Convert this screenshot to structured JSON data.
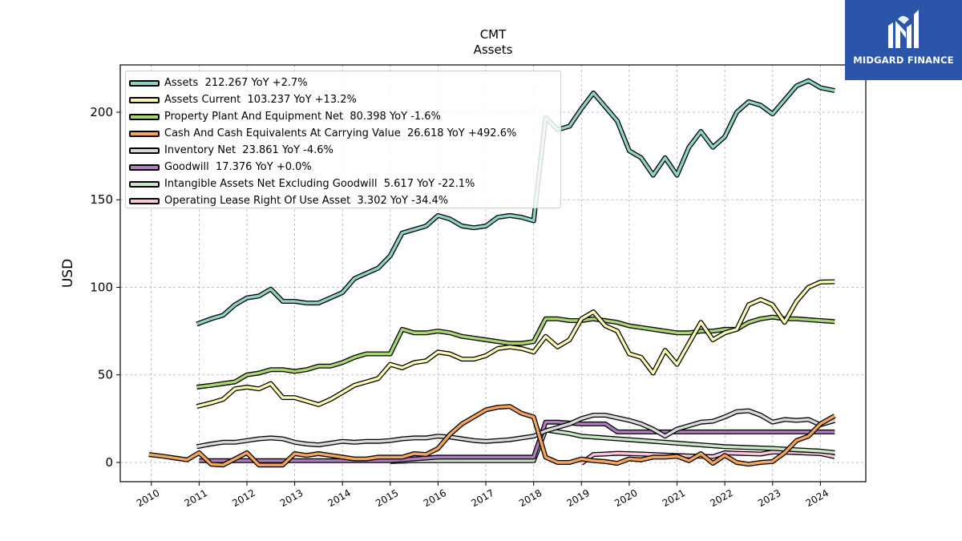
{
  "chart_data": {
    "type": "line",
    "title": "CMT",
    "subtitle": "Assets",
    "xlabel": "",
    "ylabel": "USD",
    "ylim": [
      -11,
      227
    ],
    "xlim": [
      2009.35,
      2024.95
    ],
    "grid": true,
    "legend_position": "top-left",
    "x_ticks": [
      "2010",
      "2011",
      "2012",
      "2013",
      "2014",
      "2015",
      "2016",
      "2017",
      "2018",
      "2019",
      "2020",
      "2021",
      "2022",
      "2023",
      "2024"
    ],
    "y_ticks": [
      0,
      50,
      100,
      150,
      200
    ],
    "series": [
      {
        "name": "Operating Lease Right Of Use Asset  3.302 YoY -34.4%",
        "color": "#fcc5dd",
        "x": [
          2019.0,
          2019.25,
          2019.5,
          2019.75,
          2020.0,
          2020.25,
          2020.5,
          2020.75,
          2021.0,
          2021.25,
          2021.5,
          2021.75,
          2022.0,
          2022.25,
          2022.5,
          2022.75,
          2023.0,
          2023.25,
          2023.5,
          2023.75,
          2024.0,
          2024.3
        ],
        "y": [
          -0.5,
          4.5,
          4.8,
          5.2,
          5.0,
          4.8,
          4.5,
          4.2,
          3.9,
          3.7,
          3.5,
          3.3,
          5.5,
          5.2,
          5.0,
          4.8,
          6.0,
          5.8,
          5.6,
          5.3,
          5.0,
          3.3
        ]
      },
      {
        "name": "Intangible Assets Net Excluding Goodwill  5.617 YoY -22.1%",
        "color": "#c7e8c2",
        "x": [
          2015.0,
          2015.5,
          2016.0,
          2016.5,
          2017.0,
          2017.5,
          2018.0,
          2018.25,
          2018.5,
          2018.75,
          2019.0,
          2019.5,
          2020.0,
          2020.5,
          2021.0,
          2021.5,
          2022.0,
          2022.5,
          2023.0,
          2023.5,
          2024.0,
          2024.3
        ],
        "y": [
          0.5,
          1.0,
          1.0,
          1.0,
          1.0,
          1.0,
          1.0,
          18.5,
          17.5,
          16.5,
          15.0,
          14.0,
          13.0,
          12.0,
          11.0,
          10.0,
          9.0,
          8.5,
          8.0,
          7.2,
          6.5,
          5.6
        ]
      },
      {
        "name": "Goodwill  17.376 YoY +0.0%",
        "color": "#b07bbf",
        "x": [
          2011.0,
          2012.0,
          2013.0,
          2014.0,
          2015.0,
          2016.0,
          2017.0,
          2018.0,
          2018.25,
          2018.5,
          2019.0,
          2019.5,
          2019.75,
          2020.0,
          2021.0,
          2022.0,
          2023.0,
          2024.3
        ],
        "y": [
          1.0,
          1.0,
          1.0,
          1.0,
          1.0,
          3.0,
          3.0,
          3.0,
          23.0,
          23.0,
          22.0,
          22.0,
          17.4,
          17.4,
          17.4,
          17.4,
          17.4,
          17.4
        ]
      },
      {
        "name": "Inventory Net  23.861 YoY -4.6%",
        "color": "#d9d9d9",
        "x": [
          2010.95,
          2011.25,
          2011.5,
          2011.75,
          2012.0,
          2012.25,
          2012.5,
          2012.75,
          2013.0,
          2013.25,
          2013.5,
          2013.75,
          2014.0,
          2014.25,
          2014.5,
          2014.75,
          2015.0,
          2015.25,
          2015.5,
          2015.75,
          2016.0,
          2016.25,
          2016.5,
          2016.75,
          2017.0,
          2017.25,
          2017.5,
          2017.75,
          2018.0,
          2018.25,
          2018.5,
          2018.75,
          2019.0,
          2019.25,
          2019.5,
          2019.75,
          2020.0,
          2020.25,
          2020.5,
          2020.75,
          2021.0,
          2021.25,
          2021.5,
          2021.75,
          2022.0,
          2022.25,
          2022.5,
          2022.75,
          2023.0,
          2023.25,
          2023.5,
          2023.75,
          2024.0,
          2024.3
        ],
        "y": [
          9,
          10.5,
          11.5,
          11.5,
          12.5,
          13.5,
          14,
          13.5,
          11.5,
          10.5,
          10,
          11,
          12,
          11.5,
          12,
          12,
          12.5,
          13.5,
          14,
          14,
          15,
          14.5,
          13.5,
          12.5,
          12,
          12.5,
          13,
          14,
          15,
          18,
          20,
          22,
          25,
          27,
          27,
          25.5,
          24,
          22,
          19,
          15,
          19,
          21,
          23,
          23.5,
          26,
          29,
          29.5,
          27,
          23,
          24.5,
          24,
          24.5,
          21.5,
          23.9
        ]
      },
      {
        "name": "Cash And Cash Equivalents At Carrying Value  26.618 YoY +492.6%",
        "color": "#f5a55a",
        "x": [
          2009.95,
          2010.25,
          2010.5,
          2010.75,
          2011.0,
          2011.25,
          2011.5,
          2011.75,
          2012.0,
          2012.25,
          2012.5,
          2012.75,
          2013.0,
          2013.25,
          2013.5,
          2013.75,
          2014.0,
          2014.25,
          2014.5,
          2014.75,
          2015.0,
          2015.25,
          2015.5,
          2015.75,
          2016.0,
          2016.25,
          2016.5,
          2016.75,
          2017.0,
          2017.25,
          2017.5,
          2017.75,
          2018.0,
          2018.25,
          2018.5,
          2018.75,
          2019.0,
          2019.25,
          2019.5,
          2019.75,
          2020.0,
          2020.25,
          2020.5,
          2020.75,
          2021.0,
          2021.25,
          2021.5,
          2021.75,
          2022.0,
          2022.25,
          2022.5,
          2022.75,
          2023.0,
          2023.25,
          2023.5,
          2023.75,
          2024.0,
          2024.3
        ],
        "y": [
          4.5,
          3.5,
          2.5,
          1.5,
          5.5,
          -1.0,
          -1.5,
          2.0,
          5.5,
          -1.5,
          -1.5,
          -1.5,
          5.0,
          4.0,
          5.0,
          4.0,
          3.0,
          2.0,
          2.0,
          3.0,
          3.0,
          3.0,
          5.0,
          4.5,
          8.0,
          16.0,
          22.0,
          26.0,
          30.0,
          31.5,
          32.0,
          28.0,
          26.0,
          3.0,
          0.0,
          0.0,
          2.0,
          1.0,
          0.5,
          -0.5,
          2.0,
          1.5,
          3.0,
          3.0,
          3.5,
          1.0,
          5.0,
          -0.5,
          4.0,
          0.0,
          -1.0,
          0.0,
          0.5,
          5.5,
          12.5,
          15.0,
          22.0,
          26.6
        ]
      },
      {
        "name": "Property Plant And Equipment Net  80.398 YoY -1.6%",
        "color": "#a9d66e",
        "x": [
          2010.95,
          2011.25,
          2011.5,
          2011.75,
          2012.0,
          2012.25,
          2012.5,
          2012.75,
          2013.0,
          2013.25,
          2013.5,
          2013.75,
          2014.0,
          2014.25,
          2014.5,
          2014.75,
          2015.0,
          2015.25,
          2015.5,
          2015.75,
          2016.0,
          2016.25,
          2016.5,
          2016.75,
          2017.0,
          2017.25,
          2017.5,
          2017.75,
          2018.0,
          2018.25,
          2018.5,
          2018.75,
          2019.0,
          2019.25,
          2019.5,
          2019.75,
          2020.0,
          2020.25,
          2020.5,
          2020.75,
          2021.0,
          2021.25,
          2021.5,
          2021.75,
          2022.0,
          2022.25,
          2022.5,
          2022.75,
          2023.0,
          2023.25,
          2023.5,
          2023.75,
          2024.0,
          2024.3
        ],
        "y": [
          43,
          44,
          45,
          46,
          50,
          51,
          53,
          53,
          52,
          53,
          55,
          55,
          57,
          60,
          62,
          62,
          62,
          76,
          74,
          74,
          75,
          74,
          72,
          71,
          70,
          69,
          68,
          68,
          69,
          82,
          82,
          81,
          81,
          82,
          81,
          80,
          78,
          77,
          76,
          75,
          74,
          74,
          75,
          75,
          76,
          76,
          80,
          82,
          83,
          82,
          82,
          81.5,
          81,
          80.4
        ]
      },
      {
        "name": "Assets Current  103.237 YoY +13.2%",
        "color": "#fbfbb0",
        "x": [
          2010.95,
          2011.25,
          2011.5,
          2011.75,
          2012.0,
          2012.25,
          2012.5,
          2012.75,
          2013.0,
          2013.25,
          2013.5,
          2013.75,
          2014.0,
          2014.25,
          2014.5,
          2014.75,
          2015.0,
          2015.25,
          2015.5,
          2015.75,
          2016.0,
          2016.25,
          2016.5,
          2016.75,
          2017.0,
          2017.25,
          2017.5,
          2017.75,
          2018.0,
          2018.25,
          2018.5,
          2018.75,
          2019.0,
          2019.25,
          2019.5,
          2019.75,
          2020.0,
          2020.25,
          2020.5,
          2020.75,
          2021.0,
          2021.25,
          2021.5,
          2021.75,
          2022.0,
          2022.25,
          2022.5,
          2022.75,
          2023.0,
          2023.25,
          2023.5,
          2023.75,
          2024.0,
          2024.3
        ],
        "y": [
          32,
          34,
          36,
          42,
          43,
          42,
          45,
          37,
          37,
          35,
          33,
          36,
          40,
          44,
          46,
          48,
          56,
          54,
          57,
          58,
          63,
          62,
          59,
          59,
          61,
          65,
          66,
          65,
          63,
          72,
          66,
          70,
          82,
          86,
          78,
          75,
          62,
          60,
          51,
          64,
          56,
          68,
          80,
          70,
          74,
          76,
          90,
          93,
          90,
          80,
          92,
          100,
          103,
          103.2
        ]
      },
      {
        "name": "Assets  212.267 YoY +2.7%",
        "color": "#8dd3c7",
        "x": [
          2010.95,
          2011.25,
          2011.5,
          2011.75,
          2012.0,
          2012.25,
          2012.5,
          2012.75,
          2013.0,
          2013.25,
          2013.5,
          2013.75,
          2014.0,
          2014.25,
          2014.5,
          2014.75,
          2015.0,
          2015.25,
          2015.5,
          2015.75,
          2016.0,
          2016.25,
          2016.5,
          2016.75,
          2017.0,
          2017.25,
          2017.5,
          2017.75,
          2018.0,
          2018.25,
          2018.5,
          2018.75,
          2019.0,
          2019.25,
          2019.5,
          2019.75,
          2020.0,
          2020.25,
          2020.5,
          2020.75,
          2021.0,
          2021.25,
          2021.5,
          2021.75,
          2022.0,
          2022.25,
          2022.5,
          2022.75,
          2023.0,
          2023.25,
          2023.5,
          2023.75,
          2024.0,
          2024.3
        ],
        "y": [
          79,
          82,
          84,
          90,
          94,
          95,
          99,
          92,
          92,
          91,
          91,
          94,
          97,
          105,
          108,
          111,
          118,
          131,
          133,
          135,
          141,
          139,
          135,
          134,
          135,
          140,
          141,
          140,
          138,
          197,
          190,
          192,
          202,
          211,
          203,
          195,
          178,
          174,
          164,
          174,
          164,
          180,
          189,
          180,
          186,
          200,
          206,
          204,
          199,
          207,
          215,
          218,
          214,
          212.3
        ]
      }
    ]
  },
  "brand": {
    "name": "MIDGARD FINANCE"
  }
}
